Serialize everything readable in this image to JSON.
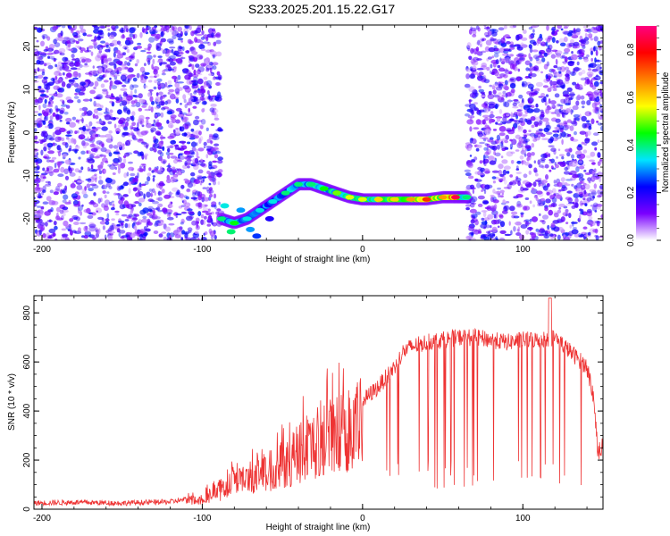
{
  "title": "S233.2025.201.15.22.G17",
  "chart_data": [
    {
      "type": "heatmap",
      "xlabel": "Height of straight line (km)",
      "ylabel": "Frequency (Hz)",
      "xlim": [
        -205,
        150
      ],
      "ylim": [
        -25,
        25
      ],
      "xticks": [
        -200,
        -100,
        0,
        100
      ],
      "yticks": [
        -20,
        -10,
        0,
        10,
        20
      ],
      "colorbar": {
        "label": "Normalized spectral amplitude",
        "range": [
          0.0,
          0.9
        ],
        "ticks": [
          0.0,
          0.2,
          0.4,
          0.6,
          0.8
        ],
        "tick_labels": [
          "0.0",
          "0.2",
          "0.4",
          "0.6",
          "0.8"
        ],
        "colormap": [
          "#ffffff",
          "#7a00ff",
          "#0000ff",
          "#00e5ff",
          "#00ff00",
          "#ffff00",
          "#ff8000",
          "#ff0000",
          "#ff0080"
        ]
      },
      "noise_regions": [
        {
          "x_range": [
            -205,
            -88
          ],
          "y_range": [
            -25,
            25
          ],
          "level": 0.15
        },
        {
          "x_range": [
            65,
            150
          ],
          "y_range": [
            -25,
            25
          ],
          "level": 0.15
        }
      ],
      "signal_track": [
        {
          "x": -88,
          "y": -20,
          "amp": 0.4
        },
        {
          "x": -80,
          "y": -21,
          "amp": 0.45
        },
        {
          "x": -72,
          "y": -20,
          "amp": 0.35
        },
        {
          "x": -64,
          "y": -18,
          "amp": 0.35
        },
        {
          "x": -56,
          "y": -16,
          "amp": 0.35
        },
        {
          "x": -48,
          "y": -14,
          "amp": 0.4
        },
        {
          "x": -40,
          "y": -12,
          "amp": 0.4
        },
        {
          "x": -32,
          "y": -12,
          "amp": 0.4
        },
        {
          "x": -24,
          "y": -13,
          "amp": 0.45
        },
        {
          "x": -16,
          "y": -14,
          "amp": 0.5
        },
        {
          "x": -8,
          "y": -15,
          "amp": 0.55
        },
        {
          "x": 0,
          "y": -15.5,
          "amp": 0.55
        },
        {
          "x": 10,
          "y": -15.5,
          "amp": 0.6
        },
        {
          "x": 20,
          "y": -15.5,
          "amp": 0.6
        },
        {
          "x": 30,
          "y": -15.5,
          "amp": 0.65
        },
        {
          "x": 40,
          "y": -15.5,
          "amp": 0.75
        },
        {
          "x": 50,
          "y": -15,
          "amp": 0.65
        },
        {
          "x": 58,
          "y": -15,
          "amp": 0.85
        },
        {
          "x": 65,
          "y": -15,
          "amp": 0.4
        }
      ],
      "extra_blobs": [
        {
          "x": -86,
          "y": -17,
          "amp": 0.35
        },
        {
          "x": -82,
          "y": -23,
          "amp": 0.4
        },
        {
          "x": -76,
          "y": -18,
          "amp": 0.3
        },
        {
          "x": -70,
          "y": -22.5,
          "amp": 0.3
        },
        {
          "x": -66,
          "y": -24,
          "amp": 0.25
        },
        {
          "x": -58,
          "y": -20,
          "amp": 0.2
        }
      ]
    },
    {
      "type": "line",
      "xlabel": "Height of straight line (km)",
      "ylabel": "SNR (10 * v/v)",
      "xlim": [
        -205,
        150
      ],
      "ylim": [
        0,
        870
      ],
      "xticks": [
        -200,
        -100,
        0,
        100
      ],
      "yticks": [
        0,
        200,
        400,
        600,
        800
      ],
      "color": "#ee3333",
      "series": [
        {
          "x": [
            -205,
            -180,
            -150,
            -120,
            -110,
            -100,
            -90,
            -80,
            -70,
            -60,
            -50,
            -40,
            -30,
            -20,
            -10,
            0,
            10,
            20,
            25,
            30,
            40,
            50,
            60,
            70,
            80,
            90,
            100,
            110,
            120,
            130,
            140,
            144,
            147,
            150
          ],
          "y": [
            25,
            28,
            25,
            30,
            40,
            55,
            90,
            130,
            150,
            190,
            230,
            280,
            330,
            370,
            400,
            440,
            500,
            580,
            640,
            660,
            680,
            690,
            700,
            700,
            690,
            680,
            690,
            690,
            700,
            640,
            580,
            460,
            230,
            260
          ]
        }
      ]
    }
  ]
}
